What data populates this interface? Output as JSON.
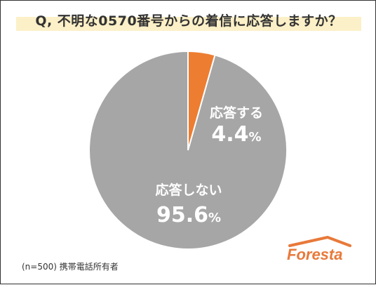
{
  "chart_data": {
    "type": "pie",
    "title": "Q, 不明な0570番号からの着信に応答しますか？",
    "slices": [
      {
        "label": "応答する",
        "value": 4.4,
        "display": "4.4",
        "unit": "%",
        "color": "#ed7d31"
      },
      {
        "label": "応答しない",
        "value": 95.6,
        "display": "95.6",
        "unit": "%",
        "color": "#a6a6a6"
      }
    ],
    "start_angle": "12 o'clock",
    "direction": "clockwise"
  },
  "footer": {
    "note": "(n=500) 携帯電話所有者"
  },
  "logo_text": "Foresta"
}
